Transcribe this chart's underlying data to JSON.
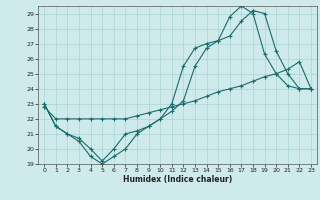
{
  "xlabel": "Humidex (Indice chaleur)",
  "bg_color": "#ceeaea",
  "line_color": "#1a6b6b",
  "grid_color": "#aad4d4",
  "xlim": [
    -0.5,
    23.5
  ],
  "ylim": [
    19,
    29.5
  ],
  "yticks": [
    19,
    20,
    21,
    22,
    23,
    24,
    25,
    26,
    27,
    28,
    29
  ],
  "xticks": [
    0,
    1,
    2,
    3,
    4,
    5,
    6,
    7,
    8,
    9,
    10,
    11,
    12,
    13,
    14,
    15,
    16,
    17,
    18,
    19,
    20,
    21,
    22,
    23
  ],
  "line1_x": [
    0,
    1,
    2,
    3,
    4,
    5,
    6,
    7,
    8,
    9,
    10,
    11,
    12,
    13,
    14,
    15,
    16,
    17,
    18,
    19,
    20,
    21,
    22,
    23
  ],
  "line1_y": [
    23,
    21.5,
    21,
    20.5,
    19.5,
    19,
    19.5,
    20,
    21,
    21.5,
    22,
    23,
    25.5,
    26.7,
    27,
    27.2,
    28.8,
    29.5,
    29,
    26.3,
    25,
    24.2,
    24,
    24
  ],
  "line2_x": [
    0,
    1,
    2,
    3,
    4,
    5,
    6,
    7,
    8,
    9,
    10,
    11,
    12,
    13,
    14,
    15,
    16,
    17,
    18,
    19,
    20,
    21,
    22,
    23
  ],
  "line2_y": [
    23,
    21.5,
    21,
    20.7,
    20,
    19.2,
    20,
    21,
    21.2,
    21.5,
    22,
    22.5,
    23.2,
    25.5,
    26.7,
    27.2,
    27.5,
    28.5,
    29.2,
    29,
    26.5,
    25,
    24,
    24
  ],
  "line3_x": [
    0,
    1,
    2,
    3,
    4,
    5,
    6,
    7,
    8,
    9,
    10,
    11,
    12,
    13,
    14,
    15,
    16,
    17,
    18,
    19,
    20,
    21,
    22,
    23
  ],
  "line3_y": [
    22.8,
    22,
    22,
    22,
    22,
    22,
    22,
    22,
    22.2,
    22.4,
    22.6,
    22.8,
    23,
    23.2,
    23.5,
    23.8,
    24,
    24.2,
    24.5,
    24.8,
    25,
    25.3,
    25.8,
    24
  ]
}
